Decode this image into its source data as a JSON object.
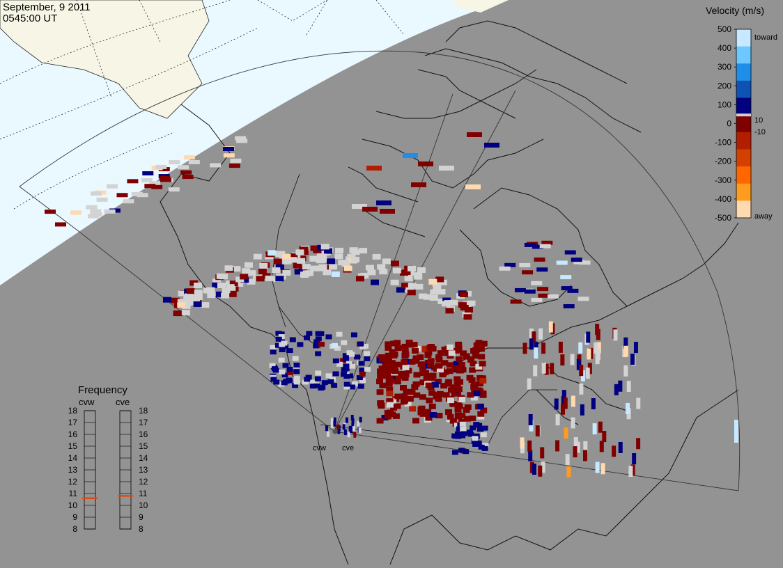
{
  "header": {
    "date": "September, 9 2011",
    "time": "0545:00 UT"
  },
  "colors": {
    "background": "#939393",
    "daylight_sea": "#eaf8ff",
    "daylight_land": "#f7f6e6",
    "ground_scatter": "#d3d3d3"
  },
  "velocity_scale": {
    "title": "Velocity (m/s)",
    "ticks": [
      "500",
      "400",
      "300",
      "200",
      "100",
      "0",
      "-100",
      "-200",
      "-300",
      "-400",
      "-500"
    ],
    "inner_ticks": [
      "10",
      "-10"
    ],
    "toward_label": "toward",
    "away_label": "away",
    "colors": [
      "#c6e9ff",
      "#6ec8ff",
      "#1e8ee8",
      "#0e52b4",
      "#000080",
      "#800000",
      "#b21e00",
      "#d44000",
      "#ff6600",
      "#ff9c20",
      "#ffd9b0"
    ]
  },
  "frequency_panel": {
    "title": "Frequency",
    "radars": [
      {
        "code": "cvw",
        "freq_mhz": 10.6
      },
      {
        "code": "cve",
        "freq_mhz": 10.8
      }
    ],
    "ticks": [
      "18",
      "17",
      "16",
      "15",
      "14",
      "13",
      "12",
      "11",
      "10",
      "9",
      "8"
    ],
    "marker_color": "#e04a10"
  },
  "map": {
    "radar_sites": [
      {
        "code": "cvw"
      },
      {
        "code": "cve"
      }
    ]
  }
}
